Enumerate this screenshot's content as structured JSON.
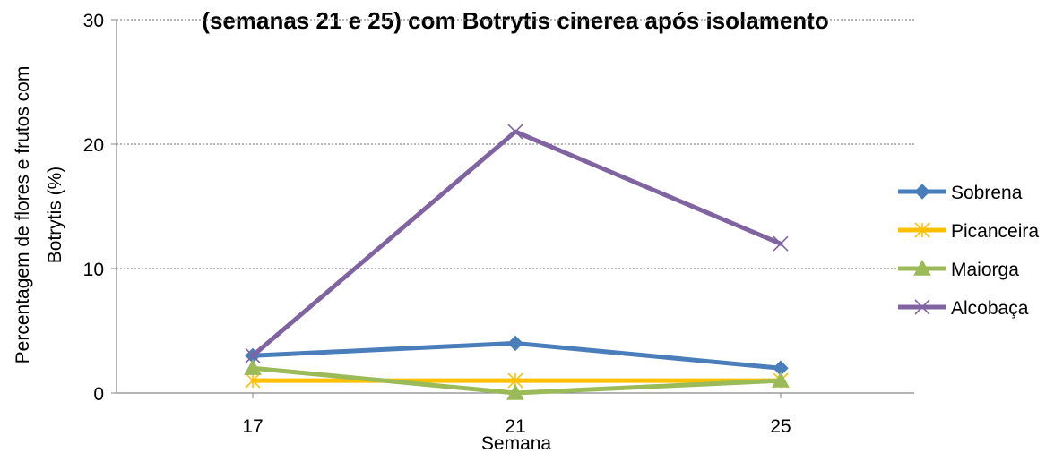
{
  "chart_data": {
    "type": "line",
    "title": "(semanas 21 e 25) com Botrytis cinerea após isolamento",
    "xlabel": "Semana",
    "ylabel": [
      "Percentagem de flores e frutos com",
      "Botrytis (%)"
    ],
    "categories": [
      "17",
      "21",
      "25"
    ],
    "ylim": [
      0,
      30
    ],
    "yticks": [
      "0",
      "10",
      "20",
      "30"
    ],
    "grid": true,
    "legend_position": "right",
    "series": [
      {
        "name": "Sobrena",
        "values": [
          3,
          4,
          2
        ],
        "color": "#4a7ebb",
        "marker": "diamond"
      },
      {
        "name": "Picanceira",
        "values": [
          1,
          1,
          1
        ],
        "color": "#ffc000",
        "marker": "asterisk"
      },
      {
        "name": "Maiorga",
        "values": [
          2,
          0,
          1
        ],
        "color": "#9bbb59",
        "marker": "triangle"
      },
      {
        "name": "Alcobaça",
        "values": [
          3,
          21,
          12
        ],
        "color": "#8064a2",
        "marker": "x"
      }
    ]
  }
}
